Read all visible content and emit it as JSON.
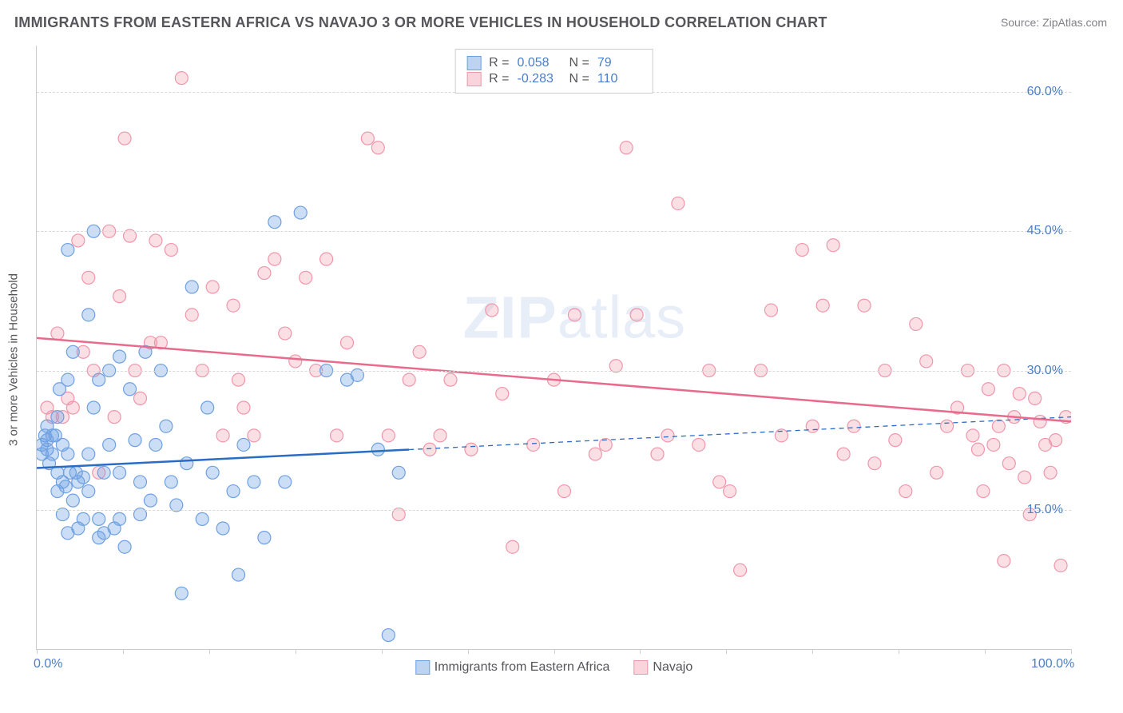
{
  "title": "IMMIGRANTS FROM EASTERN AFRICA VS NAVAJO 3 OR MORE VEHICLES IN HOUSEHOLD CORRELATION CHART",
  "source": "Source: ZipAtlas.com",
  "ylabel": "3 or more Vehicles in Household",
  "watermark_a": "ZIP",
  "watermark_b": "atlas",
  "chart": {
    "type": "scatter-correlation",
    "background_color": "#ffffff",
    "grid_color": "#d8d8d8",
    "tick_color": "#cccccc",
    "tick_label_color": "#4a7ec9",
    "text_color": "#55555a",
    "xlim": [
      0,
      100
    ],
    "ylim": [
      0,
      65
    ],
    "y_ticks": [
      15,
      30,
      45,
      60
    ],
    "y_tick_labels": [
      "15.0%",
      "30.0%",
      "45.0%",
      "60.0%"
    ],
    "x_ticks": [
      0,
      8.33,
      16.67,
      25,
      33.33,
      41.67,
      50,
      58.33,
      66.67,
      75,
      83.33,
      91.67,
      100
    ],
    "x_tick_labels": {
      "0": "0.0%",
      "100": "100.0%"
    },
    "marker_radius": 8,
    "marker_stroke_width": 1.2,
    "line_width": 2.5,
    "series": [
      {
        "name": "Immigrants from Eastern Africa",
        "color_fill": "rgba(110, 160, 225, 0.35)",
        "color_stroke": "#6ea0e1",
        "swatch_fill": "#bcd4f0",
        "swatch_stroke": "#6ea0e1",
        "line_color": "#2a6bc4",
        "R": "0.058",
        "N": "79",
        "trend": {
          "x1": 0,
          "y1": 19.5,
          "x2": 100,
          "y2": 25,
          "solid_until": 36
        },
        "points": [
          [
            0.5,
            21
          ],
          [
            0.5,
            22
          ],
          [
            0.8,
            23
          ],
          [
            1,
            22.5
          ],
          [
            1,
            21.5
          ],
          [
            1,
            24
          ],
          [
            1.2,
            20
          ],
          [
            1.5,
            23
          ],
          [
            1.5,
            21
          ],
          [
            1.8,
            23
          ],
          [
            2,
            19
          ],
          [
            2,
            17
          ],
          [
            2,
            25
          ],
          [
            2.2,
            28
          ],
          [
            2.5,
            14.5
          ],
          [
            2.5,
            18
          ],
          [
            2.5,
            22
          ],
          [
            2.8,
            17.5
          ],
          [
            3,
            43
          ],
          [
            3,
            29
          ],
          [
            3,
            12.5
          ],
          [
            3,
            21
          ],
          [
            3.2,
            19
          ],
          [
            3.5,
            16
          ],
          [
            3.5,
            32
          ],
          [
            3.8,
            19
          ],
          [
            4,
            18
          ],
          [
            4,
            13
          ],
          [
            4.5,
            14
          ],
          [
            4.5,
            18.5
          ],
          [
            5,
            36
          ],
          [
            5,
            21
          ],
          [
            5,
            17
          ],
          [
            5.5,
            45
          ],
          [
            5.5,
            26
          ],
          [
            6,
            12
          ],
          [
            6,
            29
          ],
          [
            6,
            14
          ],
          [
            6.5,
            19
          ],
          [
            6.5,
            12.5
          ],
          [
            7,
            30
          ],
          [
            7,
            22
          ],
          [
            7.5,
            13
          ],
          [
            8,
            31.5
          ],
          [
            8,
            14
          ],
          [
            8,
            19
          ],
          [
            8.5,
            11
          ],
          [
            9,
            28
          ],
          [
            9.5,
            22.5
          ],
          [
            10,
            14.5
          ],
          [
            10,
            18
          ],
          [
            10.5,
            32
          ],
          [
            11,
            16
          ],
          [
            11.5,
            22
          ],
          [
            12,
            30
          ],
          [
            12.5,
            24
          ],
          [
            13,
            18
          ],
          [
            13.5,
            15.5
          ],
          [
            14,
            6
          ],
          [
            14.5,
            20
          ],
          [
            15,
            39
          ],
          [
            16,
            14
          ],
          [
            16.5,
            26
          ],
          [
            17,
            19
          ],
          [
            18,
            13
          ],
          [
            19,
            17
          ],
          [
            19.5,
            8
          ],
          [
            20,
            22
          ],
          [
            21,
            18
          ],
          [
            22,
            12
          ],
          [
            23,
            46
          ],
          [
            24,
            18
          ],
          [
            25.5,
            47
          ],
          [
            28,
            30
          ],
          [
            30,
            29
          ],
          [
            31,
            29.5
          ],
          [
            33,
            21.5
          ],
          [
            34,
            1.5
          ],
          [
            35,
            19
          ]
        ]
      },
      {
        "name": "Navajo",
        "color_fill": "rgba(240, 150, 170, 0.30)",
        "color_stroke": "#f096aa",
        "swatch_fill": "#f8d4dc",
        "swatch_stroke": "#f096aa",
        "line_color": "#e86a8c",
        "R": "-0.283",
        "N": "110",
        "trend": {
          "x1": 0,
          "y1": 33.5,
          "x2": 100,
          "y2": 24.5,
          "solid_until": 100
        },
        "points": [
          [
            1,
            26
          ],
          [
            1.5,
            25
          ],
          [
            2,
            34
          ],
          [
            2.5,
            25
          ],
          [
            3,
            27
          ],
          [
            3.5,
            26
          ],
          [
            4,
            44
          ],
          [
            4.5,
            32
          ],
          [
            5,
            40
          ],
          [
            5.5,
            30
          ],
          [
            6,
            19
          ],
          [
            7,
            45
          ],
          [
            7.5,
            25
          ],
          [
            8,
            38
          ],
          [
            8.5,
            55
          ],
          [
            9,
            44.5
          ],
          [
            9.5,
            30
          ],
          [
            10,
            27
          ],
          [
            11,
            33
          ],
          [
            11.5,
            44
          ],
          [
            12,
            33
          ],
          [
            13,
            43
          ],
          [
            14,
            61.5
          ],
          [
            15,
            36
          ],
          [
            16,
            30
          ],
          [
            17,
            39
          ],
          [
            18,
            23
          ],
          [
            19,
            37
          ],
          [
            19.5,
            29
          ],
          [
            20,
            26
          ],
          [
            21,
            23
          ],
          [
            22,
            40.5
          ],
          [
            23,
            42
          ],
          [
            24,
            34
          ],
          [
            25,
            31
          ],
          [
            26,
            40
          ],
          [
            27,
            30
          ],
          [
            28,
            42
          ],
          [
            29,
            23
          ],
          [
            30,
            33
          ],
          [
            32,
            55
          ],
          [
            33,
            54
          ],
          [
            34,
            23
          ],
          [
            35,
            14.5
          ],
          [
            36,
            29
          ],
          [
            37,
            32
          ],
          [
            38,
            21.5
          ],
          [
            39,
            23
          ],
          [
            40,
            29
          ],
          [
            42,
            21.5
          ],
          [
            44,
            36.5
          ],
          [
            45,
            27.5
          ],
          [
            46,
            11
          ],
          [
            48,
            22
          ],
          [
            50,
            29
          ],
          [
            51,
            17
          ],
          [
            52,
            36
          ],
          [
            54,
            21
          ],
          [
            55,
            22
          ],
          [
            56,
            30.5
          ],
          [
            57,
            54
          ],
          [
            58,
            36
          ],
          [
            60,
            21
          ],
          [
            61,
            23
          ],
          [
            62,
            48
          ],
          [
            64,
            22
          ],
          [
            65,
            30
          ],
          [
            66,
            18
          ],
          [
            67,
            17
          ],
          [
            68,
            8.5
          ],
          [
            70,
            30
          ],
          [
            71,
            36.5
          ],
          [
            72,
            23
          ],
          [
            74,
            43
          ],
          [
            75,
            24
          ],
          [
            76,
            37
          ],
          [
            77,
            43.5
          ],
          [
            78,
            21
          ],
          [
            79,
            24
          ],
          [
            80,
            37
          ],
          [
            81,
            20
          ],
          [
            82,
            30
          ],
          [
            83,
            22.5
          ],
          [
            84,
            17
          ],
          [
            85,
            35
          ],
          [
            86,
            31
          ],
          [
            87,
            19
          ],
          [
            88,
            24
          ],
          [
            89,
            26
          ],
          [
            90,
            30
          ],
          [
            90.5,
            23
          ],
          [
            91,
            21.5
          ],
          [
            91.5,
            17
          ],
          [
            92,
            28
          ],
          [
            92.5,
            22
          ],
          [
            93,
            24
          ],
          [
            93.5,
            30
          ],
          [
            94,
            20
          ],
          [
            94.5,
            25
          ],
          [
            95,
            27.5
          ],
          [
            95.5,
            18.5
          ],
          [
            96,
            14.5
          ],
          [
            96.5,
            27
          ],
          [
            97,
            24.5
          ],
          [
            97.5,
            22
          ],
          [
            98,
            19
          ],
          [
            98.5,
            22.5
          ],
          [
            99,
            9
          ],
          [
            99.5,
            25
          ],
          [
            93.5,
            9.5
          ]
        ]
      }
    ]
  }
}
